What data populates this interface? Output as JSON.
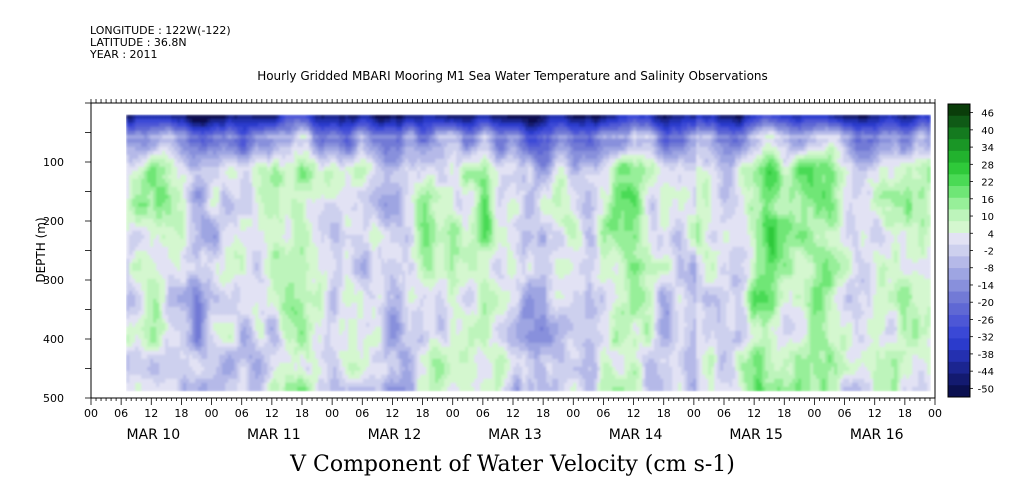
{
  "header": {
    "longitude": "LONGITUDE : 122W(-122)",
    "latitude": "LATITUDE : 36.8N",
    "year": "YEAR : 2011"
  },
  "chart_data": {
    "type": "heatmap",
    "title": "Hourly Gridded MBARI Mooring M1 Sea Water Temperature and Salinity Observations",
    "variable_label": "V Component of Water Velocity (cm s-1)",
    "ylabel": "DEPTH (m)",
    "y_axis": {
      "ylim": [
        0,
        500
      ],
      "reversed": true,
      "ticks": [
        100,
        200,
        300,
        400,
        500
      ],
      "minor_step": 50
    },
    "x_axis": {
      "hour_tick_labels": [
        "00",
        "06",
        "12",
        "18",
        "00",
        "06",
        "12",
        "18",
        "00",
        "06",
        "12",
        "18",
        "00",
        "06",
        "12",
        "18",
        "00",
        "06",
        "12",
        "18",
        "00",
        "06",
        "12",
        "18",
        "00",
        "06",
        "12",
        "18",
        "00"
      ],
      "day_labels": [
        "MAR 10",
        "MAR 11",
        "MAR 12",
        "MAR 13",
        "MAR 14",
        "MAR 15",
        "MAR 16"
      ]
    },
    "data_extent": {
      "time_start": "MAR 09 ~07h",
      "time_end": "MAR 16 ~23h",
      "depth_min": 20,
      "depth_max": 485
    },
    "colorbar": {
      "labels": [
        46,
        40,
        34,
        28,
        22,
        16,
        10,
        4,
        -2,
        -8,
        -14,
        -20,
        -26,
        -32,
        -38,
        -44,
        -50
      ],
      "range": [
        -50,
        50
      ],
      "colors": [
        "#0a3d0a",
        "#0f5a16",
        "#147a1f",
        "#1a9626",
        "#22b22e",
        "#2fc93a",
        "#4ada55",
        "#6fe676",
        "#97ef99",
        "#bdf4bb",
        "#d4f7cf",
        "#e2e2f4",
        "#cdd0ee",
        "#b5b9e8",
        "#9ea5e2",
        "#8890dc",
        "#727ad6",
        "#5f68d4",
        "#4d57d6",
        "#3a48d6",
        "#2b3bcc",
        "#2430b0",
        "#1b2590",
        "#131a70",
        "#0b1050"
      ]
    },
    "grid": false,
    "field_description": "negative (blue) velocities near surface; alternating green (positive) and lavender (near-zero/negative) vertical bands at depth; stronger positive values on MAR 14-16"
  }
}
